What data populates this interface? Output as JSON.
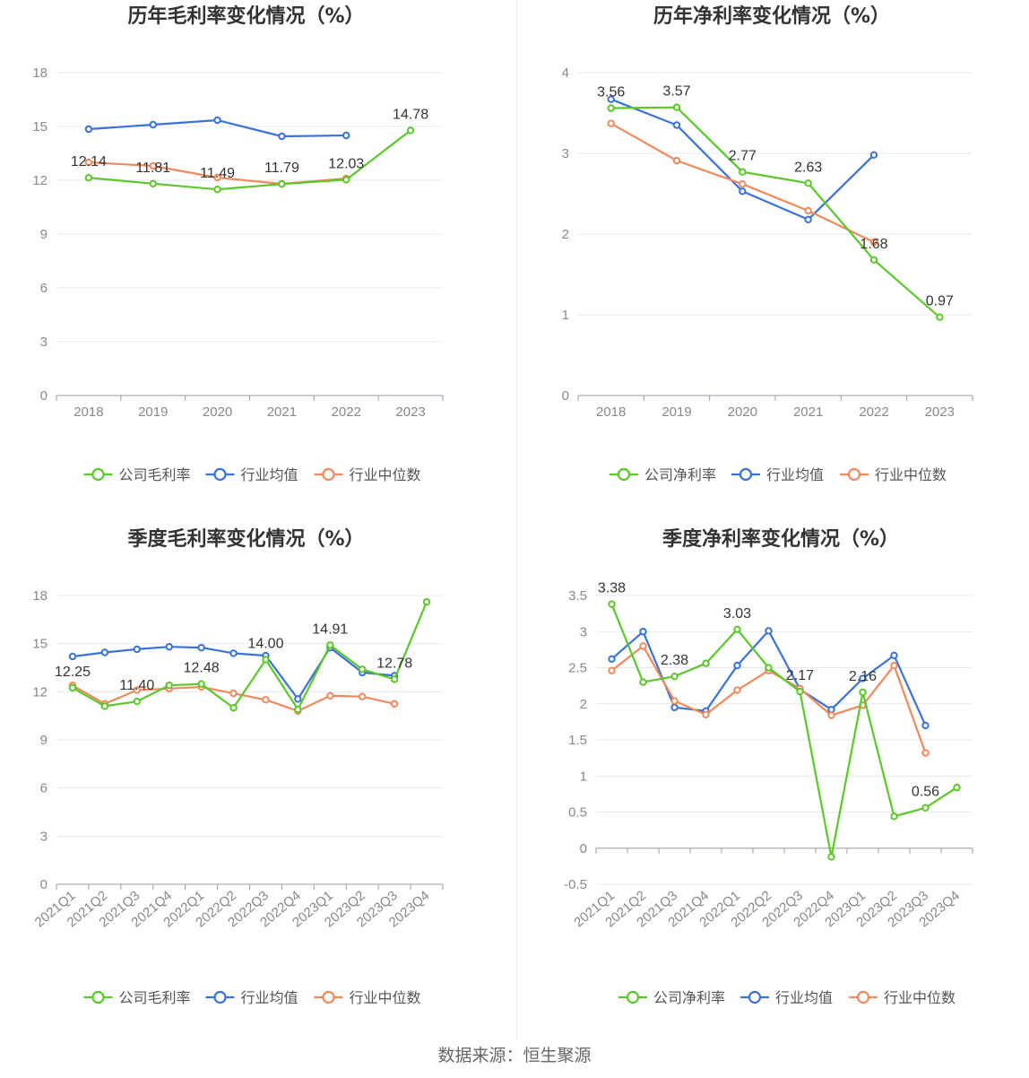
{
  "source_text": "数据来源：恒生聚源",
  "colors": {
    "company": "#5bc72a",
    "avg": "#3a72d8",
    "median": "#f08a5d"
  },
  "chart_data": [
    {
      "type": "line",
      "title": "历年毛利率变化情况（%）",
      "categories": [
        "2018",
        "2019",
        "2020",
        "2021",
        "2022",
        "2023"
      ],
      "ylim": [
        0,
        18
      ],
      "yticks": [
        "0",
        "3",
        "6",
        "9",
        "12",
        "15",
        "18"
      ],
      "series": [
        {
          "name": "公司毛利率",
          "role": "company",
          "values": [
            12.14,
            11.81,
            11.49,
            11.79,
            12.03,
            14.78
          ],
          "labels": [
            "12.14",
            "11.81",
            "11.49",
            "11.79",
            "12.03",
            "14.78"
          ]
        },
        {
          "name": "行业均值",
          "role": "avg",
          "values": [
            14.85,
            15.1,
            15.35,
            14.45,
            14.5,
            null
          ]
        },
        {
          "name": "行业中位数",
          "role": "median",
          "values": [
            13.0,
            12.8,
            12.15,
            11.8,
            12.1,
            null
          ]
        }
      ],
      "grid": true,
      "legend": "bottom"
    },
    {
      "type": "line",
      "title": "历年净利率变化情况（%）",
      "categories": [
        "2018",
        "2019",
        "2020",
        "2021",
        "2022",
        "2023"
      ],
      "ylim": [
        0,
        4
      ],
      "yticks": [
        "0",
        "1",
        "2",
        "3",
        "4"
      ],
      "series": [
        {
          "name": "公司净利率",
          "role": "company",
          "values": [
            3.56,
            3.57,
            2.77,
            2.63,
            1.68,
            0.97
          ],
          "labels": [
            "3.56",
            "3.57",
            "2.77",
            "2.63",
            "1.68",
            "0.97"
          ]
        },
        {
          "name": "行业均值",
          "role": "avg",
          "values": [
            3.67,
            3.35,
            2.53,
            2.18,
            2.98,
            null
          ]
        },
        {
          "name": "行业中位数",
          "role": "median",
          "values": [
            3.37,
            2.91,
            2.62,
            2.29,
            1.9,
            null
          ]
        }
      ],
      "grid": true,
      "legend": "bottom"
    },
    {
      "type": "line",
      "title": "季度毛利率变化情况（%）",
      "categories": [
        "2021Q1",
        "2021Q2",
        "2021Q3",
        "2021Q4",
        "2022Q1",
        "2022Q2",
        "2022Q3",
        "2022Q4",
        "2023Q1",
        "2023Q2",
        "2023Q3",
        "2023Q4"
      ],
      "ylim": [
        0,
        18
      ],
      "yticks": [
        "0",
        "3",
        "6",
        "9",
        "12",
        "15",
        "18"
      ],
      "series": [
        {
          "name": "公司毛利率",
          "role": "company",
          "values": [
            12.25,
            11.1,
            11.4,
            12.4,
            12.48,
            11.0,
            14.0,
            10.9,
            14.91,
            13.4,
            12.78,
            17.6
          ],
          "labels": [
            "12.25",
            "",
            "11.40",
            "",
            "12.48",
            "",
            "14.00",
            "",
            "14.91",
            "",
            "12.78",
            ""
          ]
        },
        {
          "name": "行业均值",
          "role": "avg",
          "values": [
            14.2,
            14.45,
            14.65,
            14.8,
            14.75,
            14.4,
            14.25,
            11.55,
            14.75,
            13.2,
            13.0,
            null
          ]
        },
        {
          "name": "行业中位数",
          "role": "median",
          "values": [
            12.4,
            11.25,
            12.1,
            12.2,
            12.3,
            11.9,
            11.5,
            10.8,
            11.75,
            11.7,
            11.25,
            null
          ]
        }
      ],
      "grid": true,
      "legend": "bottom"
    },
    {
      "type": "line",
      "title": "季度净利率变化情况（%）",
      "categories": [
        "2021Q1",
        "2021Q2",
        "2021Q3",
        "2021Q4",
        "2022Q1",
        "2022Q2",
        "2022Q3",
        "2022Q4",
        "2023Q1",
        "2023Q2",
        "2023Q3",
        "2023Q4"
      ],
      "ylim": [
        -0.5,
        3.5
      ],
      "yticks": [
        "-0.5",
        "0",
        "0.5",
        "1",
        "1.5",
        "2",
        "2.5",
        "3",
        "3.5"
      ],
      "series": [
        {
          "name": "公司净利率",
          "role": "company",
          "values": [
            3.38,
            2.3,
            2.38,
            2.56,
            3.03,
            2.5,
            2.17,
            -0.12,
            2.16,
            0.44,
            0.56,
            0.84
          ],
          "labels": [
            "3.38",
            "",
            "2.38",
            "",
            "3.03",
            "",
            "2.17",
            "",
            "2.16",
            "",
            "0.56",
            ""
          ]
        },
        {
          "name": "行业均值",
          "role": "avg",
          "values": [
            2.62,
            3.0,
            1.95,
            1.9,
            2.53,
            3.01,
            2.2,
            1.92,
            2.35,
            2.67,
            1.7,
            null
          ]
        },
        {
          "name": "行业中位数",
          "role": "median",
          "values": [
            2.46,
            2.8,
            2.04,
            1.85,
            2.19,
            2.46,
            2.21,
            1.84,
            1.98,
            2.53,
            1.32,
            null
          ]
        }
      ],
      "grid": true,
      "legend": "bottom"
    }
  ]
}
